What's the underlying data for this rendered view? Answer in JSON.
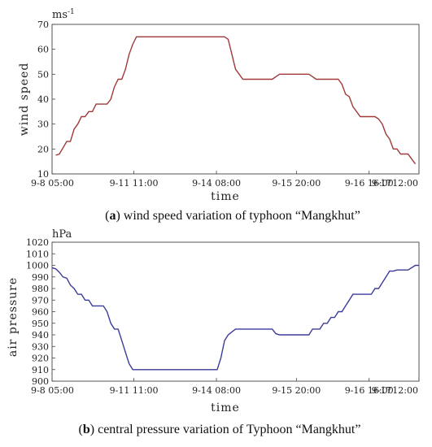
{
  "chart_data": [
    {
      "type": "line",
      "panel": "a",
      "caption_letter": "a",
      "caption_text": " wind speed variation of typhoon “Mangkhut”",
      "unit_label": "ms",
      "unit_sup": "-1",
      "xlabel": "time",
      "ylabel": "wind speed",
      "ylim": [
        10,
        70
      ],
      "yticks": [
        10,
        20,
        30,
        40,
        50,
        60,
        70
      ],
      "xlim": [
        0,
        100
      ],
      "xticks": [
        {
          "x": 0,
          "label": "9-8 05:00"
        },
        {
          "x": 22.3,
          "label": "9-11 11:00"
        },
        {
          "x": 44.8,
          "label": "9-14 08:00"
        },
        {
          "x": 66.6,
          "label": "9-15 20:00"
        },
        {
          "x": 86.4,
          "label": "9-16 16:00"
        },
        {
          "x": 102.3,
          "label": "9-17 12:00"
        }
      ],
      "x_end_label": "12:00",
      "color": "#a03a3a",
      "series": [
        {
          "x": [
            1,
            2,
            3,
            4,
            5,
            6,
            7,
            8,
            9,
            10,
            11,
            12,
            13,
            14,
            15,
            16,
            17,
            18,
            19,
            20,
            21,
            22,
            23,
            24,
            25,
            27,
            30,
            33,
            36,
            39,
            42,
            45,
            47,
            48,
            49,
            50,
            51,
            52,
            54,
            56,
            58,
            60,
            62,
            64,
            66,
            68,
            70,
            72,
            74,
            76,
            78,
            79,
            80,
            81,
            82,
            83,
            84,
            85,
            86,
            87,
            88,
            89,
            90,
            91,
            92,
            93,
            94,
            95,
            96,
            97,
            98,
            99
          ],
          "values": [
            17.5,
            18,
            20.5,
            23,
            23,
            28,
            30,
            33,
            33,
            35,
            35,
            38,
            38,
            38,
            38,
            40,
            45,
            48,
            48,
            52,
            58,
            62,
            65,
            65,
            65,
            65,
            65,
            65,
            65,
            65,
            65,
            65,
            65,
            64,
            58,
            52,
            50,
            48,
            48,
            48,
            48,
            48,
            50,
            50,
            50,
            50,
            50,
            48,
            48,
            48,
            48,
            46,
            42,
            41,
            37,
            35,
            33,
            33,
            33,
            33,
            33,
            32,
            30,
            26,
            24,
            20,
            20,
            18,
            18,
            18,
            16,
            14
          ]
        }
      ]
    },
    {
      "type": "line",
      "panel": "b",
      "caption_letter": "b",
      "caption_text": " central pressure variation of Typhoon “Mangkhut”",
      "unit_label": "hPa",
      "unit_sup": "",
      "xlabel": "time",
      "ylabel": "air pressure",
      "ylim": [
        900,
        1020
      ],
      "yticks": [
        900,
        910,
        920,
        930,
        940,
        950,
        960,
        970,
        980,
        990,
        1000,
        1010,
        1020
      ],
      "xlim": [
        0,
        100
      ],
      "xticks": [
        {
          "x": 0,
          "label": "9-8 05:00"
        },
        {
          "x": 22.3,
          "label": "9-11 11:00"
        },
        {
          "x": 44.8,
          "label": "9-14 08:00"
        },
        {
          "x": 66.6,
          "label": "9-15 20:00"
        },
        {
          "x": 86.4,
          "label": "9-16 16:00"
        },
        {
          "x": 102.3,
          "label": "9-17 12:00"
        }
      ],
      "x_end_label": "12:00",
      "color": "#3b3b9a",
      "series": [
        {
          "x": [
            0,
            1,
            2,
            3,
            4,
            5,
            6,
            7,
            8,
            9,
            10,
            11,
            12,
            13,
            14,
            15,
            16,
            17,
            18,
            19,
            20,
            21,
            22,
            24,
            27,
            30,
            33,
            36,
            39,
            42,
            44,
            45,
            46,
            47,
            48,
            50,
            52,
            55,
            58,
            60,
            61,
            62,
            64,
            66,
            68,
            70,
            71,
            72,
            73,
            74,
            75,
            76,
            77,
            78,
            79,
            80,
            81,
            82,
            83,
            84,
            85,
            86,
            87,
            88,
            89,
            90,
            91,
            92,
            93,
            94,
            95,
            96,
            97,
            98,
            99,
            100
          ],
          "values": [
            998,
            997,
            994,
            990,
            989,
            983,
            980,
            975,
            975,
            970,
            970,
            965,
            965,
            965,
            965,
            960,
            950,
            945,
            945,
            935,
            925,
            915,
            910,
            910,
            910,
            910,
            910,
            910,
            910,
            910,
            910,
            910,
            920,
            935,
            940,
            945,
            945,
            945,
            945,
            945,
            941,
            940,
            940,
            940,
            940,
            940,
            945,
            945,
            945,
            950,
            950,
            955,
            955,
            960,
            960,
            965,
            970,
            975,
            975,
            975,
            975,
            975,
            975,
            980,
            980,
            985,
            990,
            995,
            995,
            996,
            996,
            996,
            996,
            998,
            1000,
            1000
          ]
        }
      ]
    }
  ]
}
